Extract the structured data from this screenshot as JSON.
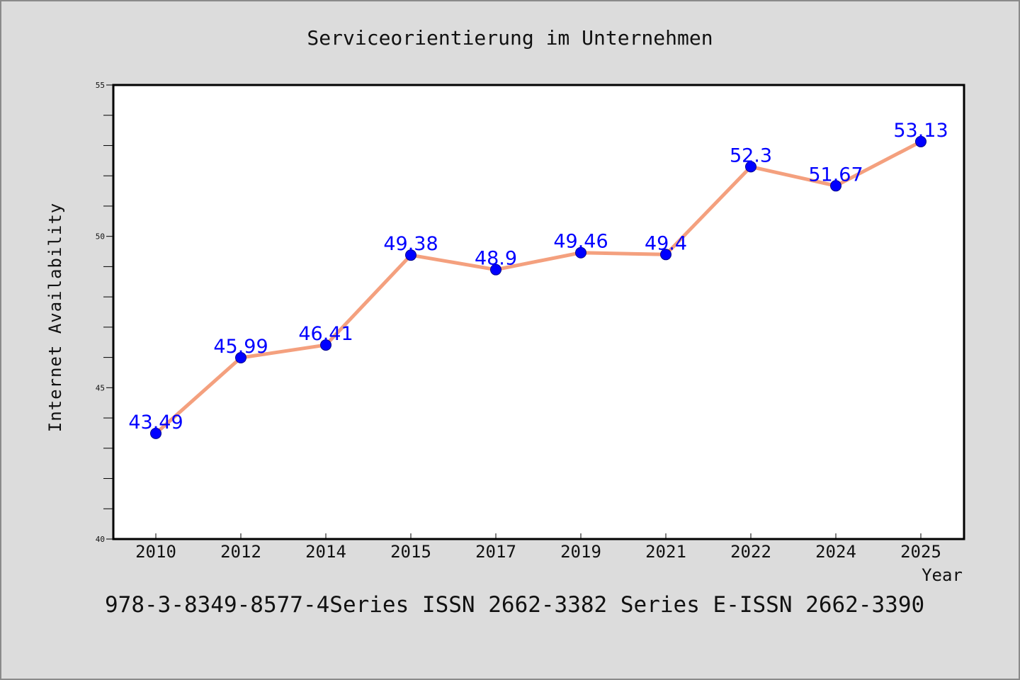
{
  "chart_data": {
    "type": "line",
    "title": "Serviceorientierung im Unternehmen",
    "xlabel": "Year",
    "ylabel": "Internet Availability",
    "categories": [
      "2010",
      "2012",
      "2014",
      "2015",
      "2017",
      "2019",
      "2021",
      "2022",
      "2024",
      "2025"
    ],
    "series": [
      {
        "values": [
          43.49,
          45.99,
          46.41,
          49.38,
          48.9,
          49.46,
          49.4,
          52.3,
          51.67,
          53.13
        ],
        "data_labels": [
          "43.49",
          "45.99",
          "46.41",
          "49.38",
          "48.9",
          "49.46",
          "49.4",
          "52.3",
          "51.67",
          "53.13"
        ],
        "line_color": "#f4a07e",
        "marker_color": "#0000ff",
        "label_color": "#0000ff"
      }
    ],
    "ylim": [
      40,
      55
    ],
    "yticks": [
      "40",
      "45",
      "50",
      "55"
    ],
    "grid": false,
    "legend": "none"
  },
  "footer": {
    "text": "978-3-8349-8577-4Series ISSN 2662-3382 Series E-ISSN 2662-3390"
  },
  "colors": {
    "background": "#dcdcdc",
    "plot_background": "#ffffff"
  }
}
